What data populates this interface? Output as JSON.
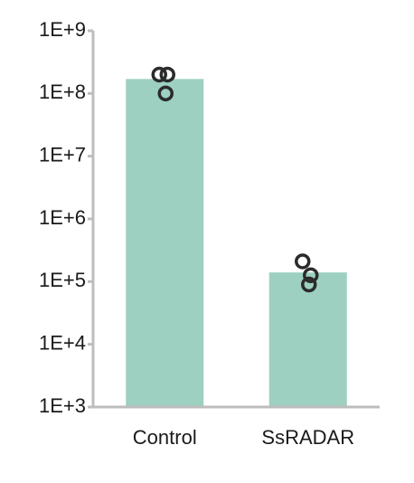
{
  "chart_data": {
    "type": "bar",
    "categories": [
      "Control",
      "SsRADAR"
    ],
    "values": [
      170000000,
      140000
    ],
    "color": "#9dd0c0",
    "points": [
      [
        200000000,
        200000000,
        100000000
      ],
      [
        210000,
        126000,
        90000
      ]
    ],
    "point_color": "#2b2b2b",
    "log_scale": true,
    "ylim": [
      1000,
      1000000000
    ],
    "yticks": [
      {
        "value": 1000,
        "label": "1E+3"
      },
      {
        "value": 10000,
        "label": "1E+4"
      },
      {
        "value": 100000,
        "label": "1E+5"
      },
      {
        "value": 1000000,
        "label": "1E+6"
      },
      {
        "value": 10000000,
        "label": "1E+7"
      },
      {
        "value": 100000000,
        "label": "1E+8"
      },
      {
        "value": 1000000000,
        "label": "1E+9"
      }
    ],
    "grid": false
  }
}
